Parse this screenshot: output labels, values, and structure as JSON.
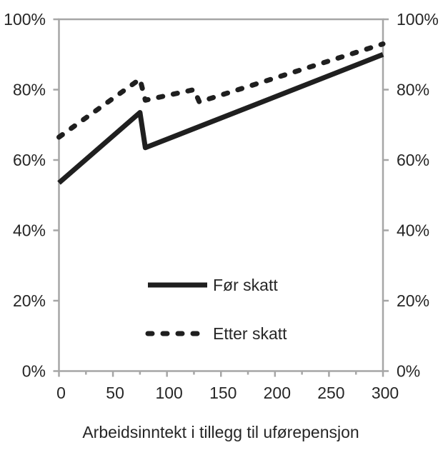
{
  "chart_data": {
    "type": "line",
    "title": "",
    "xlabel": "Arbeidsinntekt i tillegg til uførepensjon",
    "ylabel": "",
    "xlim": [
      0,
      300
    ],
    "ylim": [
      0,
      100
    ],
    "grid": false,
    "dual_y_axis": true,
    "x_tick_labels": [
      "0",
      "50",
      "100",
      "150",
      "200",
      "250",
      "300"
    ],
    "x_ticks": [
      0,
      50,
      100,
      150,
      200,
      250,
      300
    ],
    "x_minor_ticks": [
      25,
      75,
      125,
      175,
      225,
      275
    ],
    "y_ticks": [
      0,
      20,
      40,
      60,
      80,
      100
    ],
    "y_tick_labels": [
      "0%",
      "20%",
      "40%",
      "60%",
      "80%",
      "100%"
    ],
    "legend_position": "inside-bottom-center",
    "colors": {
      "line": "#1f1f1f",
      "axis": "#a6a6a6",
      "text": "#262626",
      "background": "#ffffff"
    },
    "series": [
      {
        "name": "Før skatt",
        "style": "solid",
        "color": "#1f1f1f",
        "points": [
          [
            0,
            53.5
          ],
          [
            75,
            73.5
          ],
          [
            80,
            63.5
          ],
          [
            300,
            90
          ]
        ]
      },
      {
        "name": "Etter skatt",
        "style": "dashed",
        "color": "#1f1f1f",
        "points": [
          [
            0,
            66.5
          ],
          [
            75,
            83
          ],
          [
            80,
            77
          ],
          [
            125,
            80
          ],
          [
            130,
            76.5
          ],
          [
            300,
            93
          ]
        ]
      }
    ]
  }
}
